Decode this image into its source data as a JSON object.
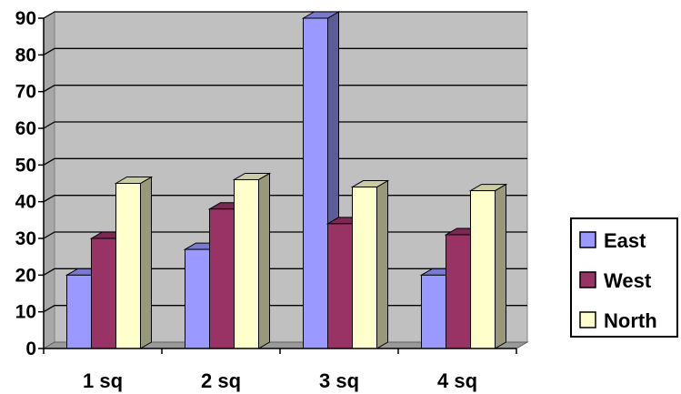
{
  "chart_data": {
    "type": "bar",
    "categories": [
      "1 sq",
      "2 sq",
      "3 sq",
      "4 sq"
    ],
    "series": [
      {
        "name": "East",
        "values": [
          20,
          27,
          90,
          20
        ],
        "color": "#9999ff"
      },
      {
        "name": "West",
        "values": [
          30,
          38,
          34,
          31
        ],
        "color": "#993366"
      },
      {
        "name": "North",
        "values": [
          45,
          46,
          44,
          43
        ],
        "color": "#ffffcc"
      }
    ],
    "ylim": [
      0,
      90
    ],
    "yticks": [
      "0",
      "10",
      "20",
      "30",
      "40",
      "50",
      "60",
      "70",
      "80",
      "90"
    ],
    "grid": true,
    "legend_position": "right",
    "plot_background": "#c0c0c0"
  }
}
